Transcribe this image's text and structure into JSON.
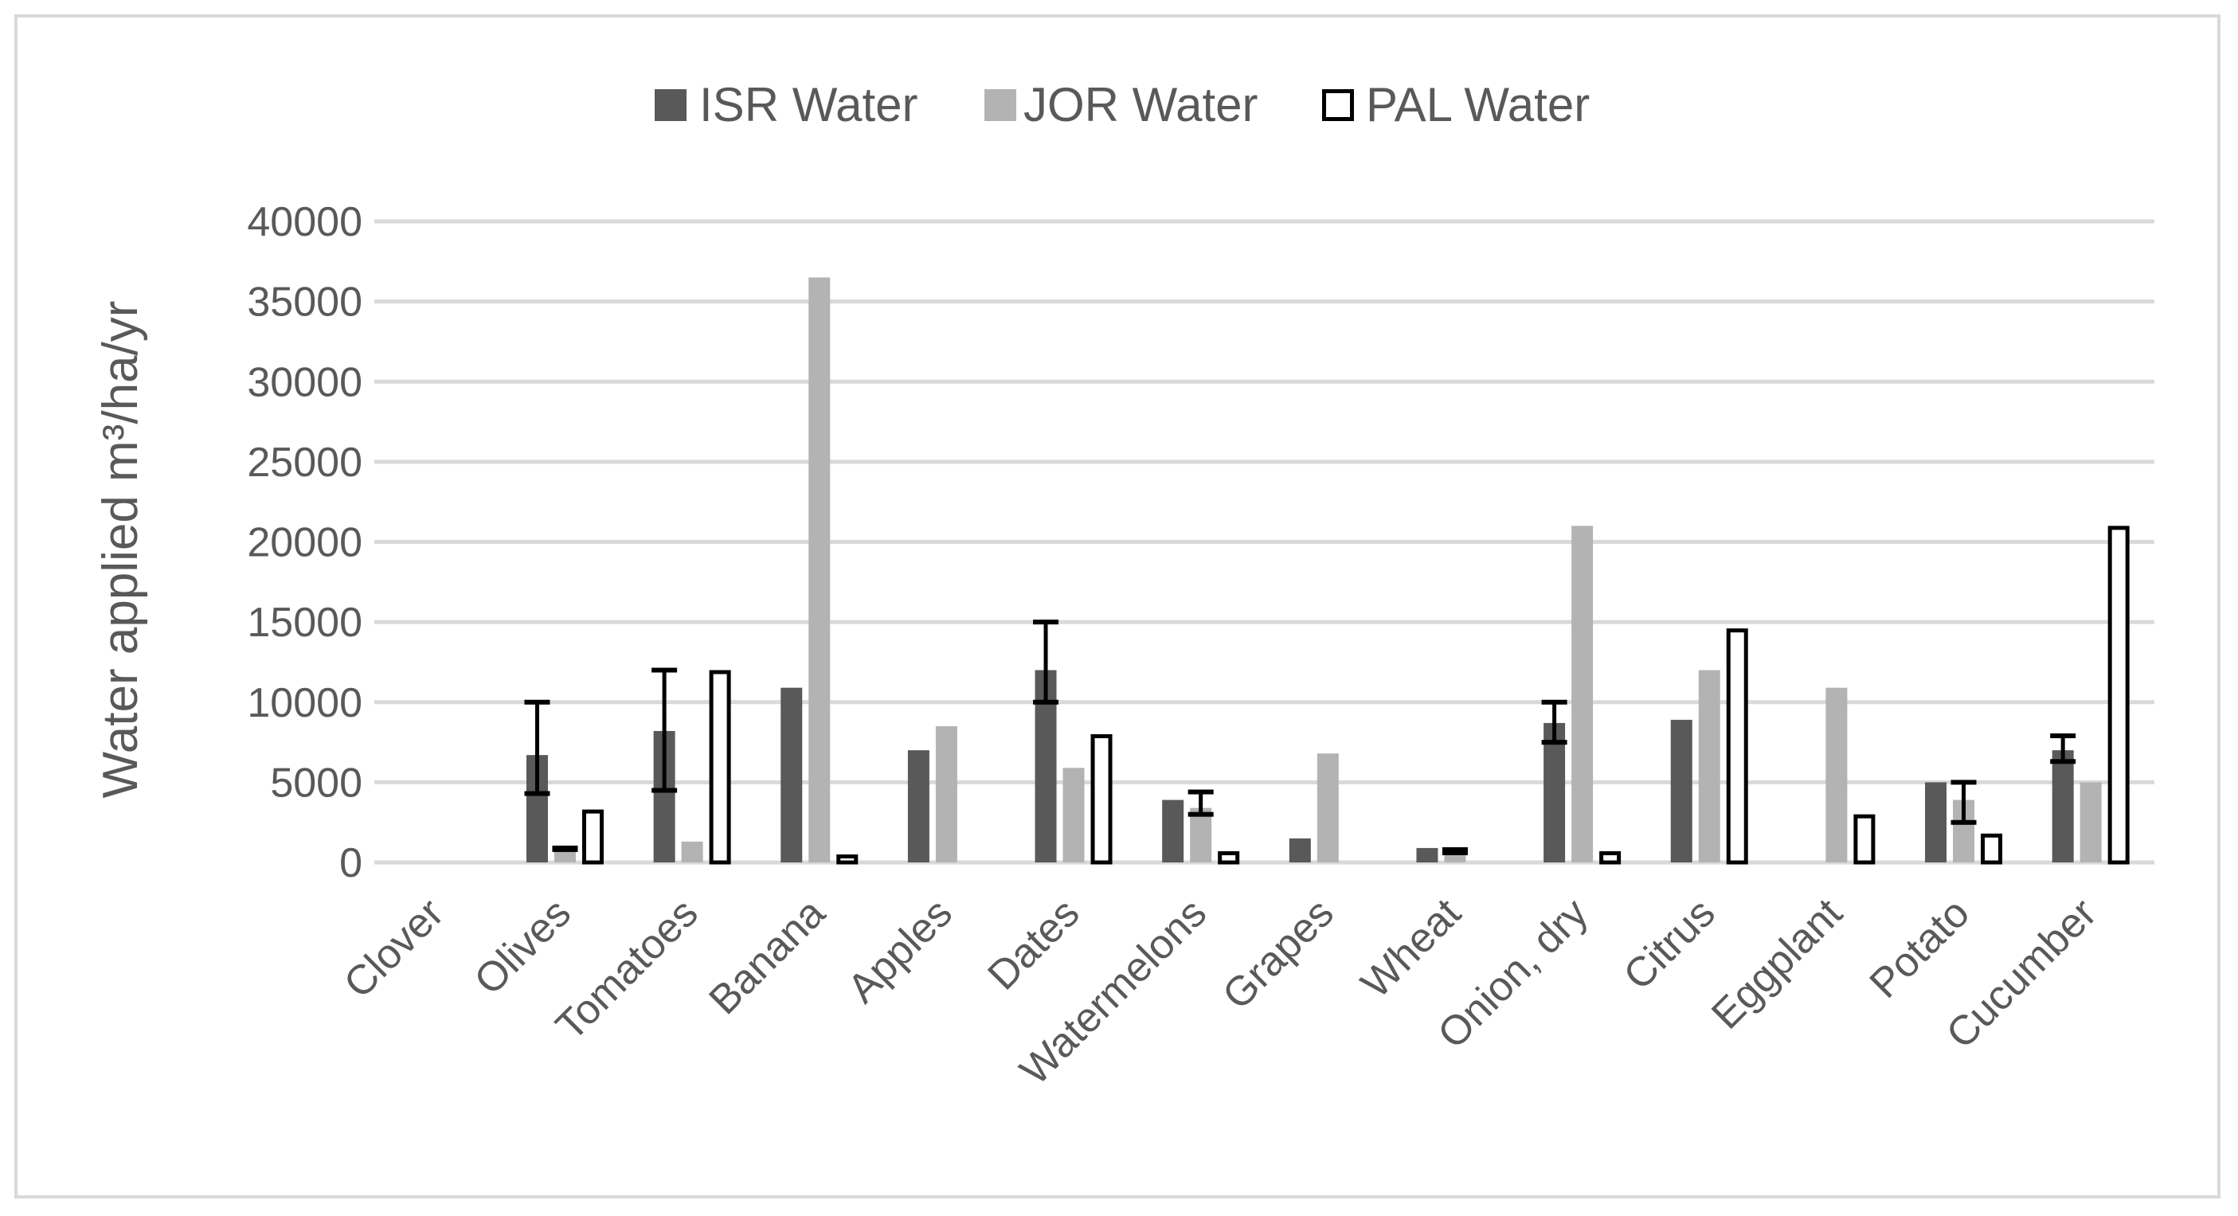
{
  "chart_data": {
    "type": "bar",
    "title": "",
    "xlabel": "",
    "ylabel": "Water applied m³/ha/yr",
    "ylim": [
      0,
      40000
    ],
    "y_ticks": [
      0,
      5000,
      10000,
      15000,
      20000,
      25000,
      30000,
      35000,
      40000
    ],
    "y_tick_labels": [
      "0",
      "5000",
      "10000",
      "15000",
      "20000",
      "25000",
      "30000",
      "35000",
      "40000"
    ],
    "grid": true,
    "legend_position": "top-center",
    "categories": [
      "Clover",
      "Olives",
      "Tomatoes",
      "Banana",
      "Apples",
      "Dates",
      "Watermelons",
      "Grapes",
      "Wheat",
      "Onion, dry",
      "Citrus",
      "Eggplant",
      "Potato",
      "Cucumber"
    ],
    "series": [
      {
        "name": "ISR Water",
        "color": "#595959",
        "style": "filled",
        "values": [
          0,
          6700,
          8200,
          10900,
          7000,
          12000,
          3900,
          1500,
          900,
          8700,
          8900,
          0,
          5000,
          7000
        ],
        "error_low": [
          null,
          4300,
          4500,
          null,
          null,
          10000,
          null,
          null,
          null,
          7500,
          null,
          null,
          null,
          6300
        ],
        "error_high": [
          null,
          10000,
          12000,
          null,
          null,
          15000,
          null,
          null,
          null,
          10000,
          null,
          null,
          null,
          7900
        ]
      },
      {
        "name": "JOR Water",
        "color": "#b3b3b3",
        "style": "filled",
        "values": [
          0,
          800,
          1300,
          36500,
          8500,
          5900,
          3400,
          6800,
          600,
          21000,
          12000,
          10900,
          3900,
          5000
        ],
        "error_low": [
          null,
          800,
          null,
          null,
          null,
          null,
          3000,
          null,
          600,
          null,
          null,
          null,
          2500,
          null
        ],
        "error_high": [
          null,
          900,
          null,
          null,
          null,
          null,
          4400,
          null,
          800,
          null,
          null,
          null,
          5000,
          null
        ]
      },
      {
        "name": "PAL Water",
        "color": "#000000",
        "style": "outline",
        "values": [
          0,
          3300,
          12000,
          500,
          0,
          8000,
          700,
          0,
          0,
          700,
          14600,
          3000,
          1800,
          21000
        ],
        "error_low": [
          null,
          null,
          null,
          null,
          null,
          null,
          null,
          null,
          null,
          null,
          null,
          null,
          null,
          null
        ],
        "error_high": [
          null,
          null,
          null,
          null,
          null,
          null,
          null,
          null,
          null,
          null,
          null,
          null,
          null,
          null
        ]
      }
    ]
  }
}
